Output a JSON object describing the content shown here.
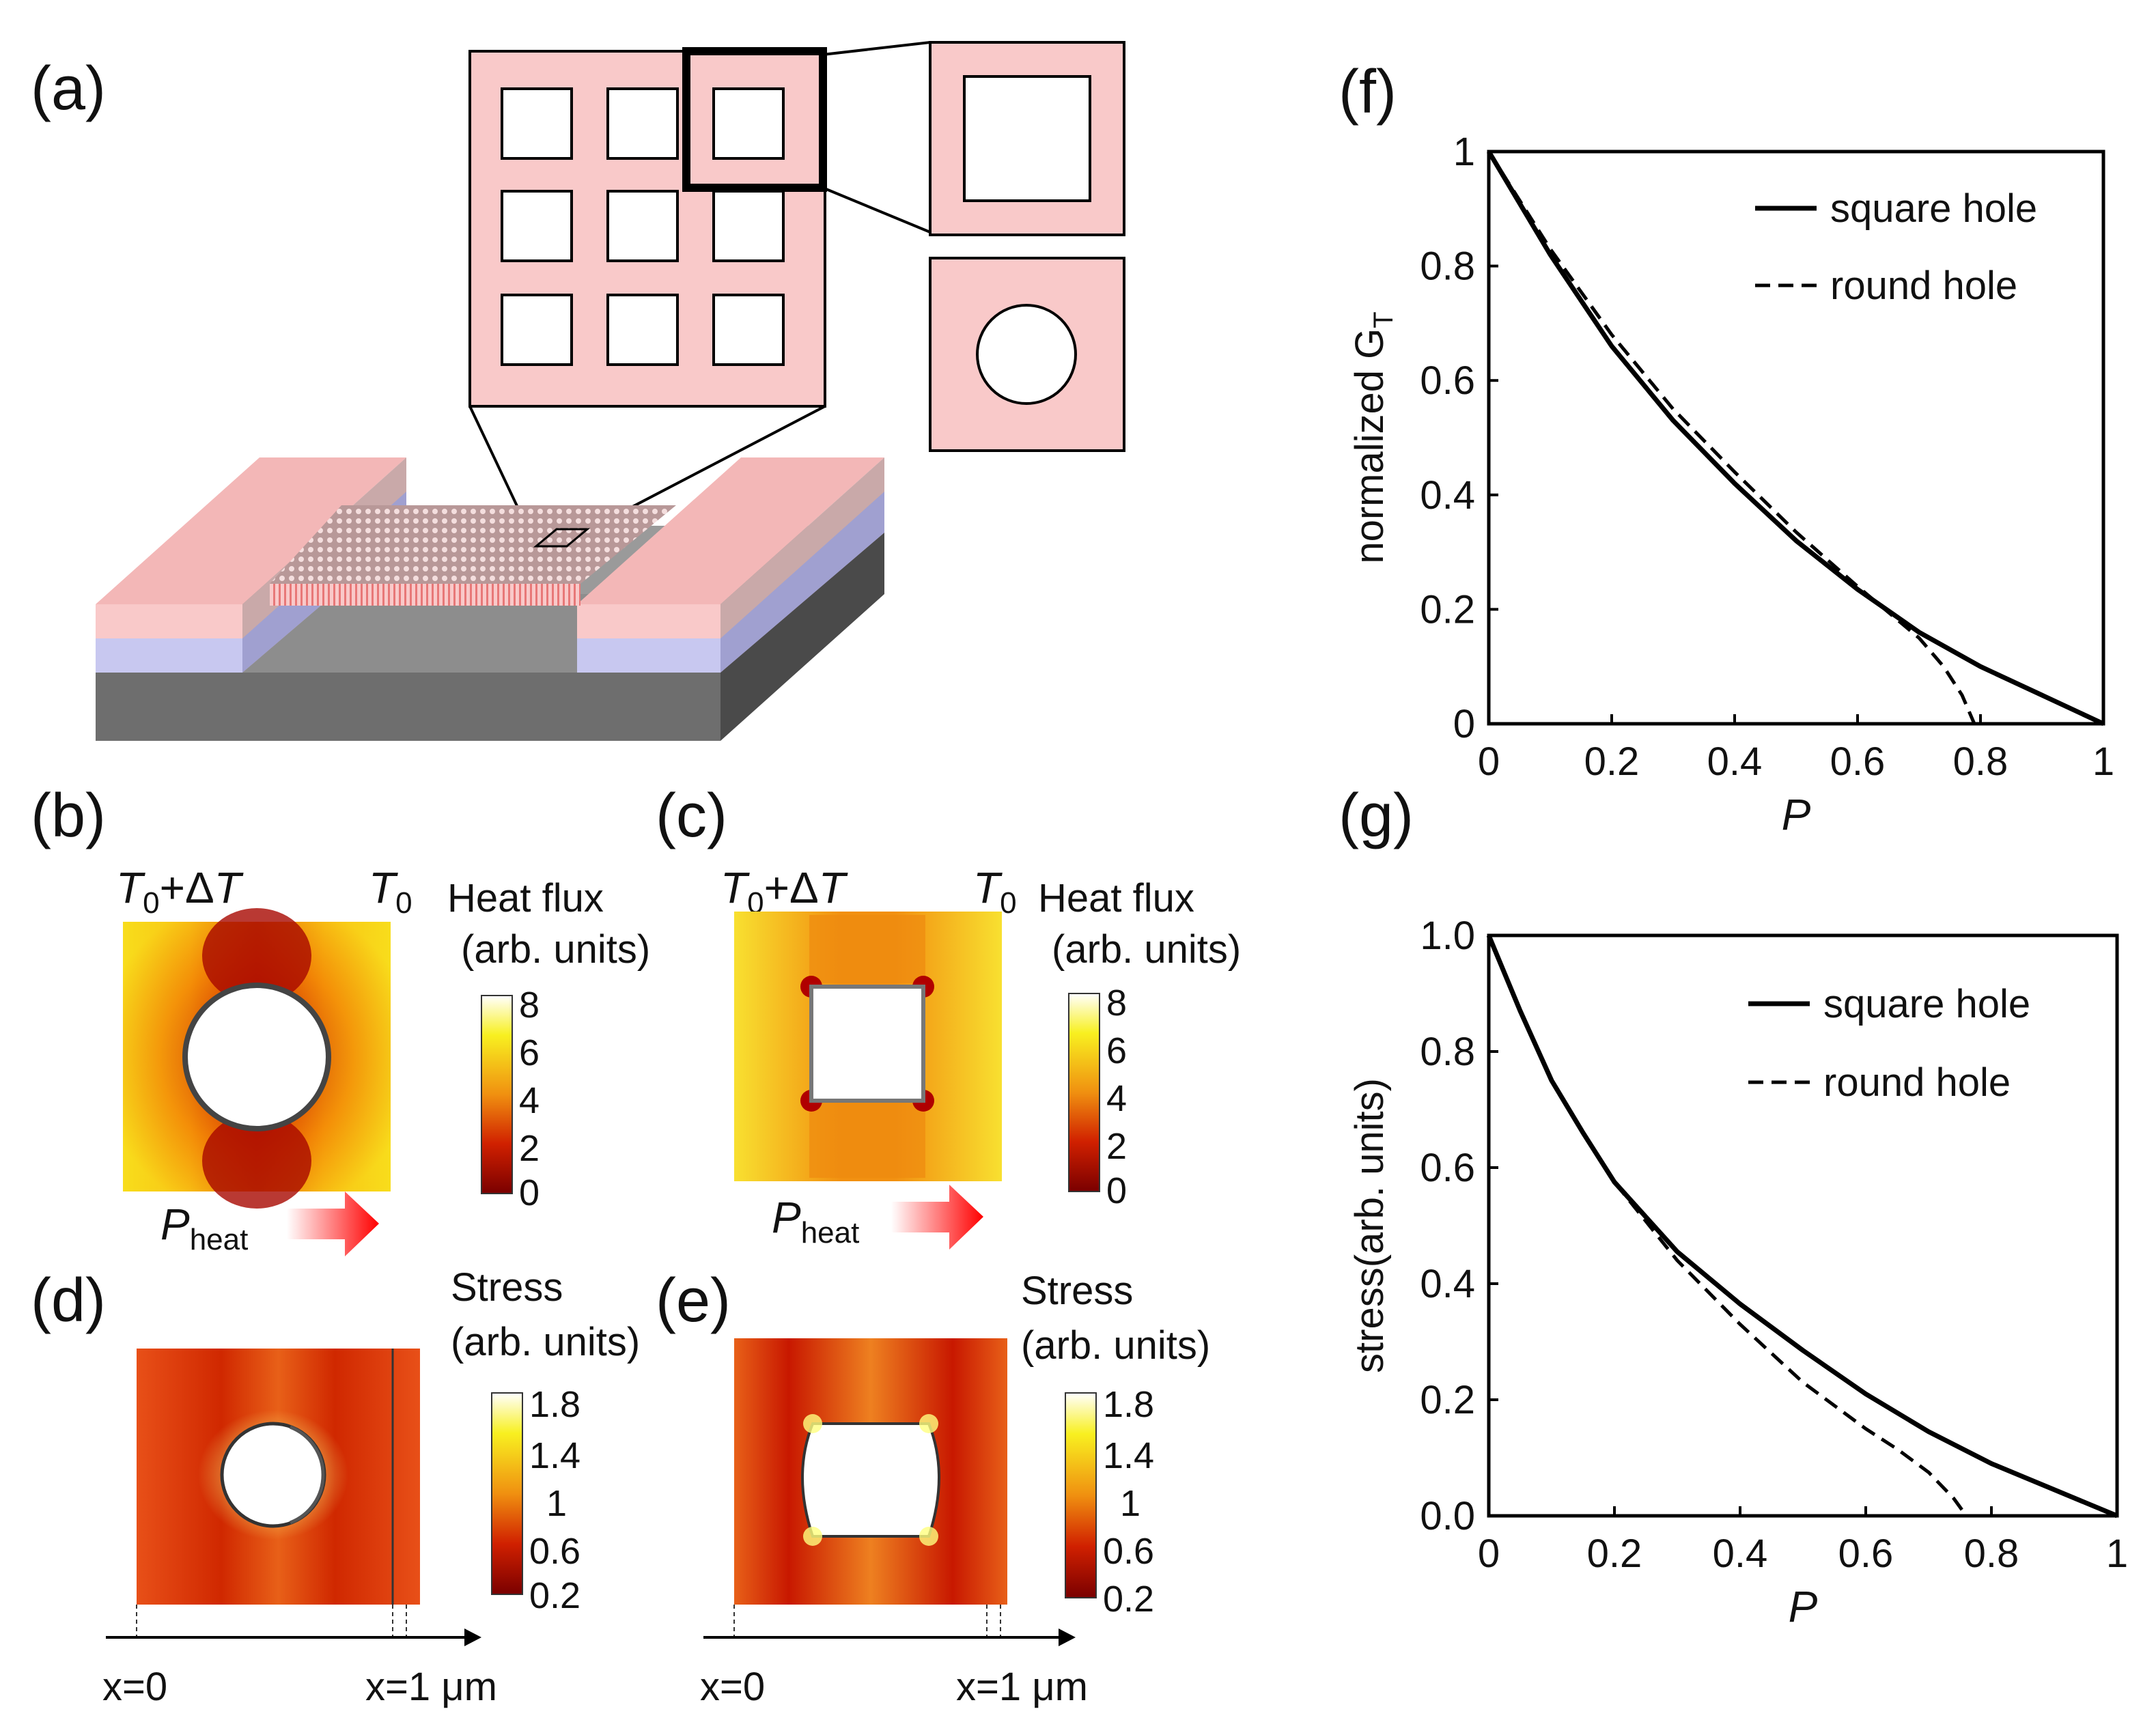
{
  "panels": {
    "a": {
      "label": "(a)"
    },
    "b": {
      "label": "(b)",
      "left_temp_T": "T",
      "left_temp_sub": "0",
      "left_temp_suffix": "+Δ",
      "left_temp_T2": "T",
      "right_temp_T": "T",
      "right_temp_sub": "0",
      "colorbar_title": "Heat flux",
      "colorbar_units": "(arb. units)",
      "colorbar_ticks": [
        "8",
        "6",
        "4",
        "2",
        "0"
      ],
      "arrow_label": "P",
      "arrow_sub": "heat"
    },
    "c": {
      "label": "(c)",
      "left_temp_T": "T",
      "left_temp_sub": "0",
      "left_temp_suffix": "+Δ",
      "left_temp_T2": "T",
      "right_temp_T": "T",
      "right_temp_sub": "0",
      "colorbar_title": "Heat flux",
      "colorbar_units": "(arb. units)",
      "colorbar_ticks": [
        "8",
        "6",
        "4",
        "2",
        "0"
      ],
      "arrow_label": "P",
      "arrow_sub": "heat"
    },
    "d": {
      "label": "(d)",
      "colorbar_title": "Stress",
      "colorbar_units": "(arb. units)",
      "colorbar_ticks": [
        "1.8",
        "1.4",
        "1",
        "0.6",
        "0.2"
      ],
      "x_start": "x=0",
      "x_end": "x=1 μm"
    },
    "e": {
      "label": "(e)",
      "colorbar_title": "Stress",
      "colorbar_units": "(arb. units)",
      "colorbar_ticks": [
        "1.8",
        "1.4",
        "1",
        "0.6",
        "0.2"
      ],
      "x_start": "x=0",
      "x_end": "x=1 μm"
    },
    "f": {
      "label": "(f)"
    },
    "g": {
      "label": "(g)"
    }
  },
  "colors": {
    "pink": "#f9c9c9",
    "lavender": "#c8c8f0",
    "substrate": "#777777",
    "square_hole_line": "#000000",
    "round_hole_line": "#000000"
  },
  "chart_data": [
    {
      "id": "f",
      "type": "line",
      "xlabel": "P",
      "ylabel": "normalized G",
      "ylabel_sub": "T",
      "xlim": [
        0,
        1
      ],
      "ylim": [
        0,
        1
      ],
      "xticks": [
        "0",
        "0.2",
        "0.4",
        "0.6",
        "0.8",
        "1"
      ],
      "yticks": [
        "0",
        "0.2",
        "0.4",
        "0.6",
        "0.8",
        "1"
      ],
      "legend": "top-right",
      "series": [
        {
          "name": "square hole",
          "style": "solid",
          "x": [
            0,
            0.1,
            0.2,
            0.3,
            0.4,
            0.5,
            0.6,
            0.7,
            0.8,
            0.9,
            1.0
          ],
          "y": [
            1.0,
            0.82,
            0.66,
            0.53,
            0.42,
            0.32,
            0.235,
            0.16,
            0.1,
            0.05,
            0.0
          ]
        },
        {
          "name": "round hole",
          "style": "dashed",
          "x": [
            0,
            0.1,
            0.2,
            0.3,
            0.4,
            0.5,
            0.6,
            0.65,
            0.7,
            0.74,
            0.77,
            0.79
          ],
          "y": [
            1.0,
            0.83,
            0.68,
            0.55,
            0.44,
            0.335,
            0.24,
            0.195,
            0.15,
            0.1,
            0.05,
            0.0
          ]
        }
      ]
    },
    {
      "id": "g",
      "type": "line",
      "xlabel": "P",
      "ylabel": "stress(arb. units)",
      "xlim": [
        0,
        1
      ],
      "ylim": [
        0,
        1
      ],
      "xticks": [
        "0",
        "0.2",
        "0.4",
        "0.6",
        "0.8",
        "1"
      ],
      "yticks": [
        "0.0",
        "0.2",
        "0.4",
        "0.6",
        "0.8",
        "1.0"
      ],
      "legend": "top-right",
      "series": [
        {
          "name": "square hole",
          "style": "solid",
          "x": [
            0,
            0.05,
            0.1,
            0.15,
            0.2,
            0.3,
            0.4,
            0.5,
            0.6,
            0.7,
            0.8,
            0.9,
            1.0
          ],
          "y": [
            1.0,
            0.87,
            0.75,
            0.66,
            0.575,
            0.455,
            0.365,
            0.285,
            0.21,
            0.145,
            0.09,
            0.045,
            0.0
          ]
        },
        {
          "name": "round hole",
          "style": "dashed",
          "x": [
            0,
            0.05,
            0.1,
            0.15,
            0.2,
            0.3,
            0.4,
            0.5,
            0.6,
            0.65,
            0.7,
            0.74,
            0.76
          ],
          "y": [
            1.0,
            0.87,
            0.75,
            0.66,
            0.575,
            0.44,
            0.33,
            0.23,
            0.15,
            0.115,
            0.075,
            0.03,
            0.0
          ]
        }
      ]
    }
  ]
}
